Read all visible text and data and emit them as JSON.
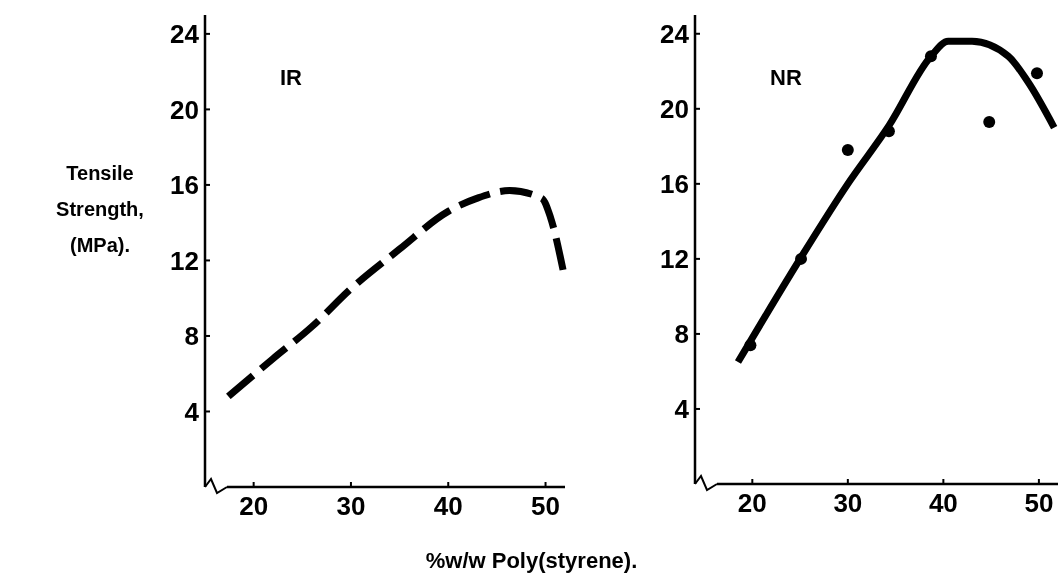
{
  "chart_data": [
    {
      "type": "line",
      "title": "IR",
      "ylabel": "Tensile\nStrength,\n(MPa).",
      "xlabel": "%w/w  Poly(styrene).",
      "xlim": [
        15,
        52
      ],
      "ylim": [
        0,
        25
      ],
      "xticks": [
        20,
        30,
        40,
        50
      ],
      "yticks": [
        4,
        8,
        12,
        16,
        20,
        24
      ],
      "grid": false,
      "line_style": "dashed",
      "series": [
        {
          "color": "#000000",
          "x": [
            17.4,
            22,
            26,
            30,
            35,
            40,
            43,
            46.3,
            49.6,
            50.5,
            51.8
          ],
          "values": [
            4.8,
            6.8,
            8.5,
            10.5,
            12.6,
            14.6,
            15.3,
            15.7,
            15.3,
            14.3,
            11.5
          ]
        }
      ]
    },
    {
      "type": "line",
      "title": "NR",
      "xlim": [
        14,
        52
      ],
      "ylim": [
        0,
        25
      ],
      "xticks": [
        20,
        30,
        40,
        50
      ],
      "yticks": [
        4,
        8,
        12,
        16,
        20,
        24
      ],
      "grid": false,
      "series": [
        {
          "color": "#000000",
          "line_style": "solid",
          "x": [
            18.5,
            25,
            30,
            34.3,
            38.7,
            40.5,
            43,
            46.8,
            48.9,
            51.6
          ],
          "values": [
            6.5,
            12,
            16,
            19.1,
            22.8,
            23.6,
            23.6,
            22.8,
            21.4,
            19
          ]
        },
        {
          "type": "scatter",
          "marker": "circle",
          "color": "#000000",
          "x": [
            19.8,
            25.1,
            30,
            34.3,
            38.7,
            44.8,
            49.8
          ],
          "values": [
            7.4,
            12,
            17.8,
            18.8,
            22.8,
            19.3,
            21.9
          ]
        }
      ]
    }
  ]
}
